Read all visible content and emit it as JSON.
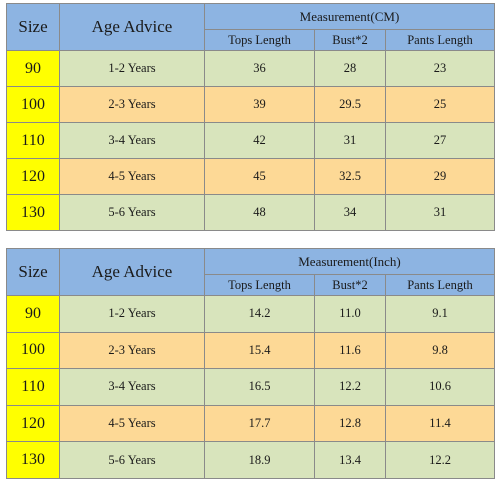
{
  "tables": [
    {
      "measurement_header": "Measurement(CM)",
      "size_header": "Size",
      "age_header": "Age Advice",
      "columns": [
        "Tops Length",
        "Bust*2",
        "Pants Length"
      ],
      "rows": [
        {
          "size": "90",
          "age": "1-2 Years",
          "tops": "36",
          "bust": "28",
          "pants": "23"
        },
        {
          "size": "100",
          "age": "2-3 Years",
          "tops": "39",
          "bust": "29.5",
          "pants": "25"
        },
        {
          "size": "110",
          "age": "3-4 Years",
          "tops": "42",
          "bust": "31",
          "pants": "27"
        },
        {
          "size": "120",
          "age": "4-5 Years",
          "tops": "45",
          "bust": "32.5",
          "pants": "29"
        },
        {
          "size": "130",
          "age": "5-6 Years",
          "tops": "48",
          "bust": "34",
          "pants": "31"
        }
      ]
    },
    {
      "measurement_header": "Measurement(Inch)",
      "size_header": "Size",
      "age_header": "Age Advice",
      "columns": [
        "Tops Length",
        "Bust*2",
        "Pants Length"
      ],
      "rows": [
        {
          "size": "90",
          "age": "1-2 Years",
          "tops": "14.2",
          "bust": "11.0",
          "pants": "9.1"
        },
        {
          "size": "100",
          "age": "2-3 Years",
          "tops": "15.4",
          "bust": "11.6",
          "pants": "9.8"
        },
        {
          "size": "110",
          "age": "3-4 Years",
          "tops": "16.5",
          "bust": "12.2",
          "pants": "10.6"
        },
        {
          "size": "120",
          "age": "4-5 Years",
          "tops": "17.7",
          "bust": "12.8",
          "pants": "11.4"
        },
        {
          "size": "130",
          "age": "5-6 Years",
          "tops": "18.9",
          "bust": "13.4",
          "pants": "12.2"
        }
      ]
    }
  ],
  "colors": {
    "header_blue": "#8db4e2",
    "size_yellow": "#ffff00",
    "row_green": "#d8e4bc",
    "row_yellow": "#fdd996"
  }
}
